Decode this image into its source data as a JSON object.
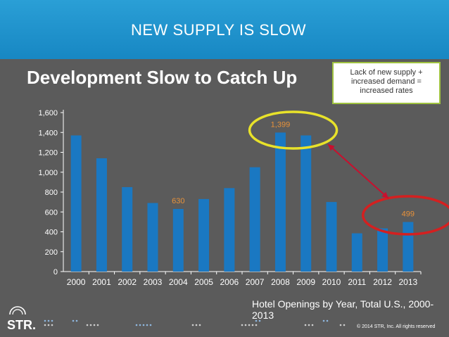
{
  "header": {
    "title": "NEW SUPPLY IS SLOW"
  },
  "callout": {
    "lines": [
      "Lack of new supply +",
      "increased demand =",
      "increased rates"
    ]
  },
  "footer": {
    "caption": "Hotel Openings by Year, Total U.S., 2000-2013",
    "logo": "STR.",
    "copyright": "© 2014 STR, Inc. All rights reserved"
  },
  "colors": {
    "header": "#1f93cf",
    "background": "#5b5b5b",
    "bar": "#1a78c2",
    "label_highlight": "#e8923a",
    "highlight_circle_yellow": "#e8e22a",
    "highlight_circle_red": "#d42020",
    "arrow": "#c8102e"
  },
  "chart_data": {
    "type": "bar",
    "title": "Development Slow to Catch Up",
    "categories": [
      "2000",
      "2001",
      "2002",
      "2003",
      "2004",
      "2005",
      "2006",
      "2007",
      "2008",
      "2009",
      "2010",
      "2011",
      "2012",
      "2013"
    ],
    "values": [
      1370,
      1140,
      850,
      690,
      630,
      730,
      840,
      1050,
      1399,
      1370,
      700,
      385,
      435,
      499
    ],
    "ylim": [
      0,
      1600
    ],
    "yticks": [
      "0",
      "200",
      "400",
      "600",
      "800",
      "1,000",
      "1,200",
      "1,400",
      "1,600"
    ],
    "ytick_values": [
      0,
      200,
      400,
      600,
      800,
      1000,
      1200,
      1400,
      1600
    ],
    "data_labels": [
      {
        "category": "2004",
        "text": "630"
      },
      {
        "category": "2008",
        "text": "1,399"
      },
      {
        "category": "2013",
        "text": "499"
      }
    ],
    "grid": false
  }
}
